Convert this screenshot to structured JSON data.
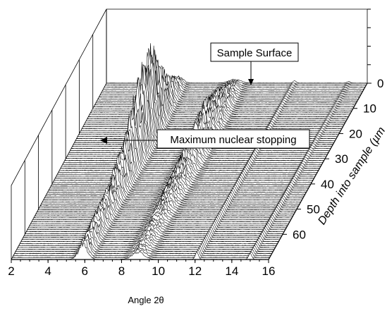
{
  "chart_data": {
    "type": "waterfall-3d",
    "xlabel": "Angle 2θ",
    "ylabel": "Depth into sample  (µm",
    "x_ticks": [
      2,
      4,
      6,
      8,
      10,
      12,
      14,
      16
    ],
    "y_ticks": [
      0,
      10,
      20,
      30,
      40,
      50,
      60
    ],
    "xlim": [
      2,
      16
    ],
    "ylim": [
      0,
      70
    ],
    "grid": true,
    "annotations": [
      {
        "text": "Sample Surface",
        "target_x": 15,
        "target_depth": 0
      },
      {
        "text": "Maximum nuclear stopping",
        "target_x": 6.8,
        "target_depth": 28
      }
    ],
    "peaks": [
      {
        "center": 5.9,
        "envelope": [
          [
            0,
            0.08
          ],
          [
            10,
            0.4
          ],
          [
            20,
            1.0
          ],
          [
            28,
            1.0
          ],
          [
            38,
            0.55
          ],
          [
            50,
            0.32
          ],
          [
            70,
            0.22
          ]
        ]
      },
      {
        "center": 8.9,
        "envelope": [
          [
            0,
            0.05
          ],
          [
            10,
            0.25
          ],
          [
            20,
            0.42
          ],
          [
            35,
            0.3
          ],
          [
            55,
            0.14
          ],
          [
            70,
            0.1
          ]
        ]
      },
      {
        "center": 12.1,
        "envelope": [
          [
            0,
            0.03
          ],
          [
            30,
            0.06
          ],
          [
            70,
            0.1
          ]
        ]
      },
      {
        "center": 15.0,
        "envelope": [
          [
            0,
            0.02
          ],
          [
            40,
            0.05
          ],
          [
            70,
            0.08
          ]
        ]
      }
    ]
  }
}
